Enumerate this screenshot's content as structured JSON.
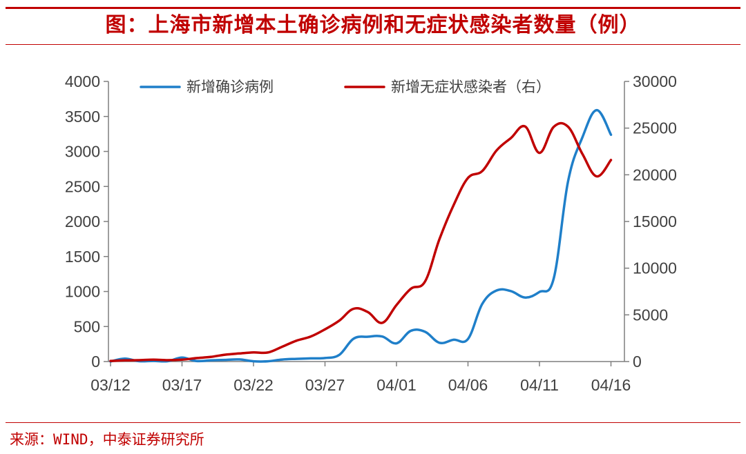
{
  "title": "图：上海市新增本土确诊病例和无症状感染者数量（例）",
  "source": "来源：WIND，中泰证券研究所",
  "colors": {
    "accent": "#c00000",
    "series_blue": "#1f7fc9",
    "series_red": "#c00000",
    "axis": "#7f7f7f"
  },
  "chart_data": {
    "type": "line",
    "title": "上海市新增本土确诊病例和无症状感染者数量（例）",
    "x_ticks": [
      "03/12",
      "03/17",
      "03/22",
      "03/27",
      "04/01",
      "04/06",
      "04/11",
      "04/16"
    ],
    "x": [
      "03/12",
      "03/13",
      "03/14",
      "03/15",
      "03/16",
      "03/17",
      "03/18",
      "03/19",
      "03/20",
      "03/21",
      "03/22",
      "03/23",
      "03/24",
      "03/25",
      "03/26",
      "03/27",
      "03/28",
      "03/29",
      "03/30",
      "03/31",
      "04/01",
      "04/02",
      "04/03",
      "04/04",
      "04/05",
      "04/06",
      "04/07",
      "04/08",
      "04/09",
      "04/10",
      "04/11",
      "04/12",
      "04/13",
      "04/14",
      "04/15",
      "04/16",
      "04/17"
    ],
    "y_left": {
      "min": 0,
      "max": 4000,
      "ticks": [
        0,
        500,
        1000,
        1500,
        2000,
        2500,
        3000,
        3500,
        4000
      ]
    },
    "y_right": {
      "min": 0,
      "max": 30000,
      "ticks": [
        0,
        5000,
        10000,
        15000,
        20000,
        25000,
        30000
      ]
    },
    "grid": false,
    "legend_position": "top",
    "series": [
      {
        "name": "新增确诊病例",
        "axis": "left",
        "color": "#1f7fc9",
        "values": [
          1,
          41,
          5,
          9,
          5,
          57,
          8,
          17,
          24,
          31,
          4,
          4,
          29,
          38,
          45,
          50,
          96,
          326,
          355,
          358,
          260,
          438,
          425,
          268,
          311,
          322,
          824,
          1015,
          1006,
          914,
          994,
          1189,
          2573,
          3200,
          3590,
          3238,
          null
        ]
      },
      {
        "name": "新增无症状感染者（右）",
        "axis": "right",
        "color": "#c00000",
        "values": [
          64,
          128,
          150,
          197,
          150,
          203,
          366,
          492,
          734,
          865,
          981,
          969,
          1582,
          2231,
          2676,
          3450,
          4381,
          5656,
          5298,
          4144,
          6051,
          7788,
          8581,
          13086,
          16766,
          19660,
          20398,
          22609,
          23937,
          25173,
          22348,
          25141,
          25146,
          22242,
          19831,
          21582,
          null
        ]
      }
    ]
  }
}
